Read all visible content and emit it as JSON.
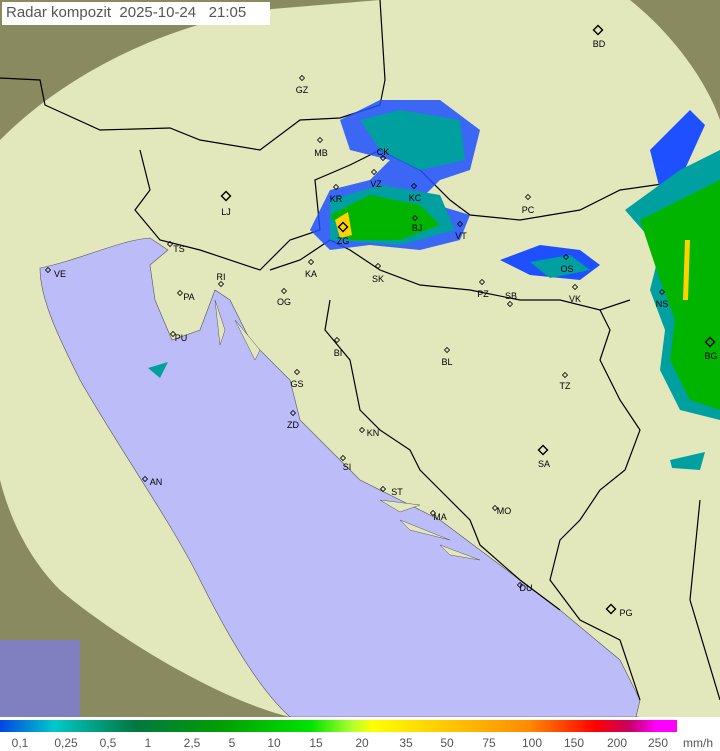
{
  "header": {
    "title": "Radar kompozit",
    "date": "2025-10-24",
    "time": "21:05"
  },
  "colors": {
    "sea": "#bcbcf8",
    "land": "#e6ecc0",
    "outside": "#8a8a60",
    "radar_light": "#1e50ff",
    "radar_mid": "#00a0a0",
    "radar_strong": "#00b400",
    "radar_peak": "#ffd200"
  },
  "legend": {
    "unit": "mm/h",
    "values": [
      "0,1",
      "0,25",
      "0,5",
      "1",
      "2,5",
      "5",
      "10",
      "15",
      "20",
      "35",
      "50",
      "75",
      "100",
      "150",
      "200",
      "250"
    ]
  },
  "cities": [
    {
      "code": "BD",
      "major": true
    },
    {
      "code": "GZ"
    },
    {
      "code": "MB"
    },
    {
      "code": "CK"
    },
    {
      "code": "KR"
    },
    {
      "code": "VZ"
    },
    {
      "code": "KC"
    },
    {
      "code": "PC"
    },
    {
      "code": "LJ",
      "major": true
    },
    {
      "code": "TS"
    },
    {
      "code": "VE"
    },
    {
      "code": "ZG",
      "major": true
    },
    {
      "code": "BJ"
    },
    {
      "code": "VT"
    },
    {
      "code": "KA"
    },
    {
      "code": "SK"
    },
    {
      "code": "RI"
    },
    {
      "code": "PA"
    },
    {
      "code": "OG"
    },
    {
      "code": "PZ"
    },
    {
      "code": "SB"
    },
    {
      "code": "OS"
    },
    {
      "code": "VK"
    },
    {
      "code": "NS"
    },
    {
      "code": "PU"
    },
    {
      "code": "BI"
    },
    {
      "code": "BL"
    },
    {
      "code": "BG",
      "major": true
    },
    {
      "code": "GS"
    },
    {
      "code": "TZ"
    },
    {
      "code": "ZD"
    },
    {
      "code": "KN"
    },
    {
      "code": "SA",
      "major": true
    },
    {
      "code": "SI"
    },
    {
      "code": "AN"
    },
    {
      "code": "ST"
    },
    {
      "code": "MA"
    },
    {
      "code": "MO"
    },
    {
      "code": "DU"
    },
    {
      "code": "PG",
      "major": true
    }
  ]
}
